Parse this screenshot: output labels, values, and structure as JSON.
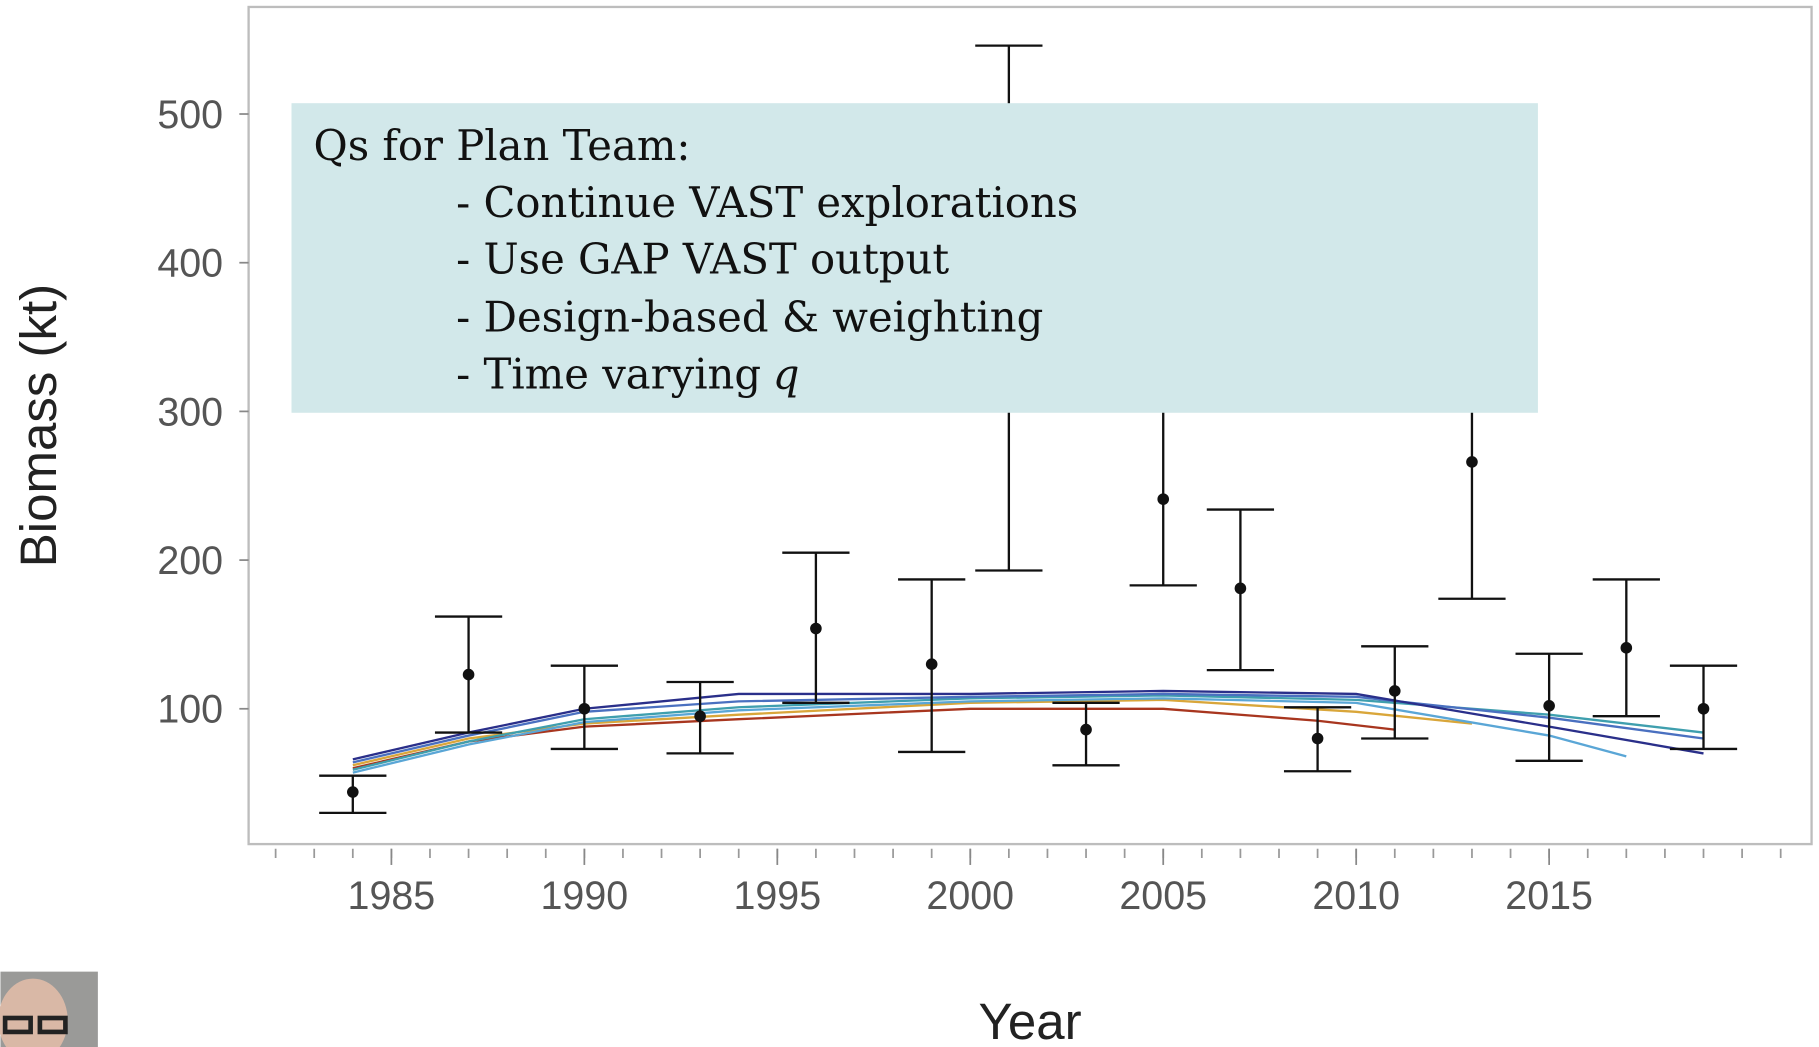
{
  "chart_data": {
    "type": "line",
    "xlabel": "Year",
    "ylabel": "Biomass (kt)",
    "xlim": [
      1981.3,
      2021.8
    ],
    "ylim": [
      9,
      572
    ],
    "xticks": [
      1985,
      1990,
      1995,
      2000,
      2005,
      2010,
      2015
    ],
    "xminorticks": [
      1982,
      1983,
      1984,
      1985,
      1986,
      1987,
      1988,
      1989,
      1990,
      1991,
      1992,
      1993,
      1994,
      1995,
      1996,
      1997,
      1998,
      1999,
      2000,
      2001,
      2002,
      2003,
      2004,
      2005,
      2006,
      2007,
      2008,
      2009,
      2010,
      2011,
      2012,
      2013,
      2014,
      2015,
      2016,
      2017,
      2018,
      2019,
      2020,
      2021
    ],
    "yticks": [
      100,
      200,
      300,
      400,
      500
    ],
    "series": [
      {
        "color": "#d9a63a",
        "x": [
          1984,
          1987,
          1990,
          1994,
          2000,
          2005,
          2010,
          2013
        ],
        "values": [
          62,
          80,
          90,
          96,
          104,
          106,
          98,
          90
        ]
      },
      {
        "color": "#a8361f",
        "x": [
          1984,
          1987,
          1990,
          1994,
          2000,
          2005,
          2009,
          2011
        ],
        "values": [
          60,
          78,
          88,
          93,
          100,
          100,
          92,
          86
        ]
      },
      {
        "color": "#5aa6d6",
        "x": [
          1984,
          1987,
          1990,
          1994,
          2000,
          2005,
          2010,
          2015,
          2017
        ],
        "values": [
          57,
          76,
          91,
          99,
          105,
          107,
          104,
          82,
          68
        ]
      },
      {
        "color": "#3f9fae",
        "x": [
          1984,
          1987,
          1990,
          1994,
          2000,
          2005,
          2010,
          2015,
          2019
        ],
        "values": [
          59,
          78,
          93,
          101,
          107,
          109,
          106,
          96,
          84
        ]
      },
      {
        "color": "#4a70c0",
        "x": [
          1984,
          1987,
          1990,
          1994,
          2000,
          2005,
          2010,
          2015,
          2019
        ],
        "values": [
          64,
          82,
          98,
          105,
          108,
          110,
          108,
          94,
          80
        ]
      },
      {
        "color": "#2a2f8a",
        "x": [
          1984,
          1987,
          1990,
          1994,
          2000,
          2005,
          2010,
          2015,
          2019
        ],
        "values": [
          66,
          84,
          100,
          110,
          110,
          112,
          110,
          88,
          70
        ]
      }
    ],
    "survey": {
      "color": "#111111",
      "x": [
        1984,
        1987,
        1990,
        1993,
        1996,
        1999,
        2001,
        2003,
        2005,
        2007,
        2009,
        2011,
        2013,
        2015,
        2017,
        2019
      ],
      "values": [
        44,
        123,
        100,
        95,
        154,
        130,
        370,
        86,
        241,
        181,
        80,
        112,
        266,
        102,
        141,
        100
      ],
      "lower": [
        30,
        84,
        73,
        70,
        104,
        71,
        193,
        62,
        183,
        126,
        58,
        80,
        174,
        65,
        95,
        73
      ],
      "upper": [
        55,
        162,
        129,
        118,
        205,
        187,
        546,
        104,
        320,
        234,
        101,
        142,
        400,
        137,
        187,
        129
      ]
    }
  },
  "textbox": {
    "title": "Qs for Plan Team:",
    "items": [
      "- Continue VAST explorations",
      "- Use GAP VAST output",
      "- Design-based & weighting",
      "- Time varying"
    ],
    "italic": "q"
  }
}
